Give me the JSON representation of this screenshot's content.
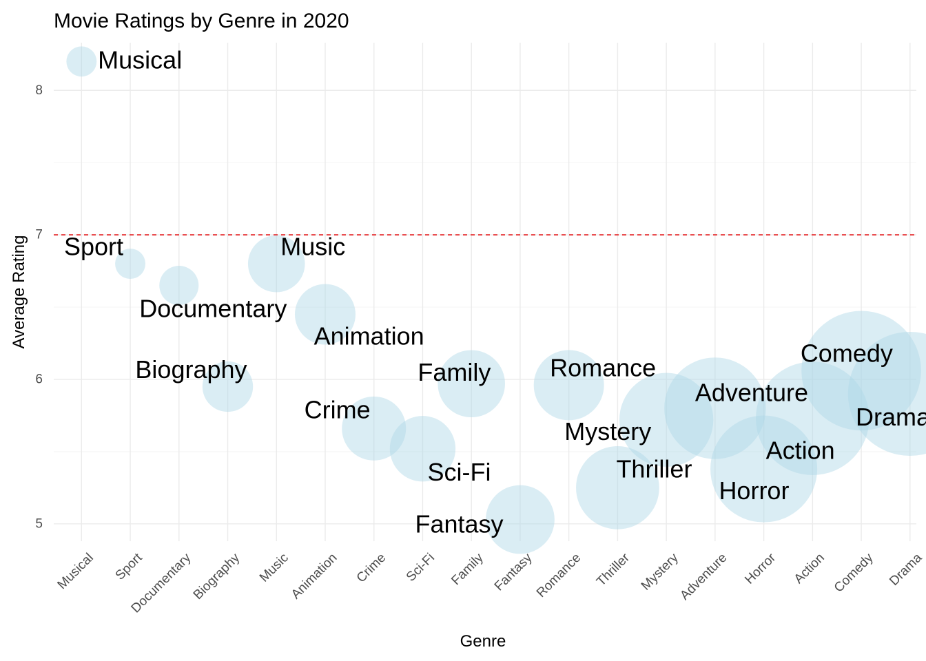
{
  "chart_data": {
    "type": "scatter",
    "subtype": "bubble",
    "title": "Movie Ratings by Genre in 2020",
    "xlabel": "Genre",
    "ylabel": "Average Rating",
    "categories": [
      "Musical",
      "Sport",
      "Documentary",
      "Biography",
      "Music",
      "Animation",
      "Crime",
      "Sci-Fi",
      "Family",
      "Fantasy",
      "Romance",
      "Thriller",
      "Mystery",
      "Adventure",
      "Horror",
      "Action",
      "Comedy",
      "Drama"
    ],
    "points": [
      {
        "genre": "Musical",
        "rating": 8.2,
        "size": 1
      },
      {
        "genre": "Sport",
        "rating": 6.8,
        "size": 1
      },
      {
        "genre": "Documentary",
        "rating": 6.65,
        "size": 3
      },
      {
        "genre": "Biography",
        "rating": 5.95,
        "size": 7
      },
      {
        "genre": "Music",
        "rating": 6.8,
        "size": 10
      },
      {
        "genre": "Animation",
        "rating": 6.45,
        "size": 12
      },
      {
        "genre": "Crime",
        "rating": 5.66,
        "size": 14
      },
      {
        "genre": "Sci-Fi",
        "rating": 5.52,
        "size": 15
      },
      {
        "genre": "Family",
        "rating": 5.97,
        "size": 16
      },
      {
        "genre": "Fantasy",
        "rating": 5.03,
        "size": 17
      },
      {
        "genre": "Romance",
        "rating": 5.96,
        "size": 18
      },
      {
        "genre": "Thriller",
        "rating": 5.25,
        "size": 28
      },
      {
        "genre": "Mystery",
        "rating": 5.72,
        "size": 38
      },
      {
        "genre": "Adventure",
        "rating": 5.8,
        "size": 46
      },
      {
        "genre": "Horror",
        "rating": 5.38,
        "size": 52
      },
      {
        "genre": "Action",
        "rating": 5.73,
        "size": 60
      },
      {
        "genre": "Comedy",
        "rating": 6.06,
        "size": 68
      },
      {
        "genre": "Drama",
        "rating": 5.9,
        "size": 74
      }
    ],
    "labels": [
      {
        "genre": "Musical",
        "text": "Musical",
        "x": 2.2,
        "y": 8.21
      },
      {
        "genre": "Sport",
        "text": "Sport",
        "x": 1.25,
        "y": 6.92
      },
      {
        "genre": "Documentary",
        "text": "Documentary",
        "x": 3.7,
        "y": 6.49
      },
      {
        "genre": "Biography",
        "text": "Biography",
        "x": 3.25,
        "y": 6.07
      },
      {
        "genre": "Music",
        "text": "Music",
        "x": 5.75,
        "y": 6.92
      },
      {
        "genre": "Animation",
        "text": "Animation",
        "x": 6.9,
        "y": 6.3
      },
      {
        "genre": "Crime",
        "text": "Crime",
        "x": 6.25,
        "y": 5.79
      },
      {
        "genre": "Sci-Fi",
        "text": "Sci-Fi",
        "x": 8.75,
        "y": 5.36
      },
      {
        "genre": "Family",
        "text": "Family",
        "x": 8.65,
        "y": 6.05
      },
      {
        "genre": "Fantasy",
        "text": "Fantasy",
        "x": 8.75,
        "y": 5.0
      },
      {
        "genre": "Romance",
        "text": "Romance",
        "x": 11.7,
        "y": 6.08
      },
      {
        "genre": "Thriller",
        "text": "Thriller",
        "x": 12.75,
        "y": 5.38
      },
      {
        "genre": "Mystery",
        "text": "Mystery",
        "x": 11.8,
        "y": 5.64
      },
      {
        "genre": "Adventure",
        "text": "Adventure",
        "x": 14.75,
        "y": 5.91
      },
      {
        "genre": "Horror",
        "text": "Horror",
        "x": 14.8,
        "y": 5.23
      },
      {
        "genre": "Action",
        "text": "Action",
        "x": 15.75,
        "y": 5.51
      },
      {
        "genre": "Comedy",
        "text": "Comedy",
        "x": 16.7,
        "y": 6.18
      },
      {
        "genre": "Drama",
        "text": "Drama",
        "x": 17.65,
        "y": 5.74
      }
    ],
    "ylim": [
      4.88,
      8.33
    ],
    "yticks": [
      5,
      6,
      7,
      8
    ],
    "reference_line": {
      "y": 7,
      "color": "#e31a1c",
      "style": "dashed"
    },
    "bubble_color": "#add8e6",
    "grid": true,
    "legend": "none"
  }
}
